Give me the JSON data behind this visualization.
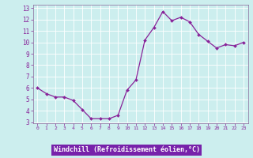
{
  "x": [
    0,
    1,
    2,
    3,
    4,
    5,
    6,
    7,
    8,
    9,
    10,
    11,
    12,
    13,
    14,
    15,
    16,
    17,
    18,
    19,
    20,
    21,
    22,
    23
  ],
  "y": [
    6.0,
    5.5,
    5.2,
    5.2,
    4.9,
    4.1,
    3.3,
    3.3,
    3.3,
    3.6,
    5.8,
    6.7,
    10.2,
    11.3,
    12.7,
    11.9,
    12.2,
    11.8,
    10.7,
    10.1,
    9.5,
    9.8,
    9.7,
    10.0
  ],
  "xlabel": "Windchill (Refroidissement éolien,°C)",
  "ylim": [
    3,
    13
  ],
  "xlim": [
    -0.5,
    23.5
  ],
  "yticks": [
    3,
    4,
    5,
    6,
    7,
    8,
    9,
    10,
    11,
    12,
    13
  ],
  "xticks": [
    0,
    1,
    2,
    3,
    4,
    5,
    6,
    7,
    8,
    9,
    10,
    11,
    12,
    13,
    14,
    15,
    16,
    17,
    18,
    19,
    20,
    21,
    22,
    23
  ],
  "line_color": "#882299",
  "marker_color": "#882299",
  "bg_color": "#cceeee",
  "grid_color": "#aadddd",
  "xlabel_color": "#ffffff",
  "xlabel_bg": "#7722aa",
  "tick_color": "#882299",
  "spine_color": "#886699"
}
